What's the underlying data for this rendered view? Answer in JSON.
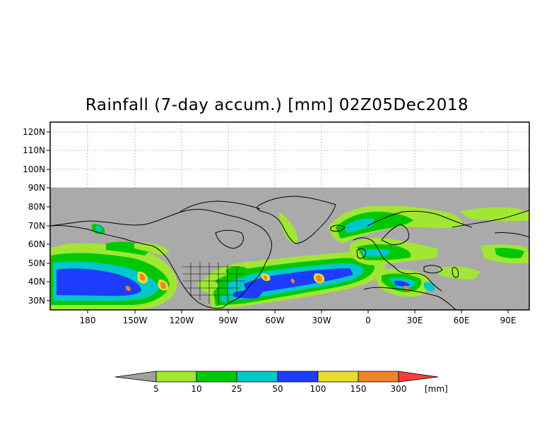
{
  "title": "Rainfall (7-day accum.) [mm] 02Z05Dec2018",
  "map": {
    "lat_labels": [
      "120N",
      "110N",
      "100N",
      "90N",
      "80N",
      "70N",
      "60N",
      "50N",
      "40N",
      "30N"
    ],
    "lon_labels": [
      "180",
      "150W",
      "120W",
      "90W",
      "60W",
      "30W",
      "0",
      "30E",
      "60E",
      "90E"
    ],
    "no_data_color": "#aaaaaa"
  },
  "legend": {
    "breaks": [
      "5",
      "10",
      "25",
      "50",
      "100",
      "150",
      "300"
    ],
    "unit": "[mm]",
    "colors": [
      "#a0a0a0",
      "#a0e632",
      "#00c800",
      "#00c8c8",
      "#1e3cff",
      "#e6dc32",
      "#f08228",
      "#fa3c3c"
    ]
  },
  "precip_colors": {
    "light_green": "#a0e632",
    "green": "#00c800",
    "cyan": "#00c8c8",
    "blue": "#1e3cff",
    "yellow": "#e6dc32",
    "orange": "#f08228"
  }
}
